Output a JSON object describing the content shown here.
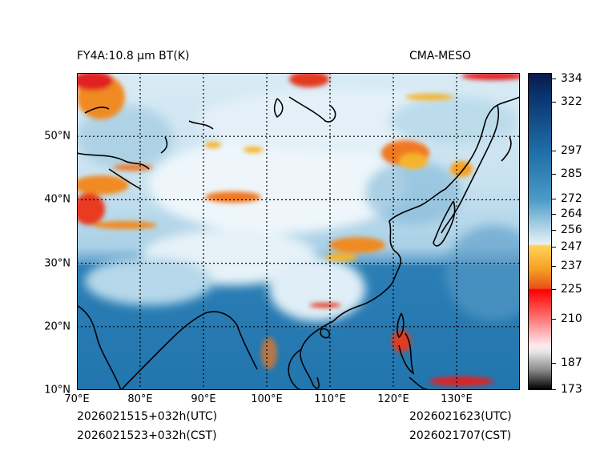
{
  "header": {
    "product": "FY4A:10.8 µm BT(K)",
    "model": "CMA-MESO"
  },
  "footer": {
    "init_utc": "2026021515+032h(UTC)",
    "init_cst": "2026021523+032h(CST)",
    "valid_utc": "2026021623(UTC)",
    "valid_cst": "2026021707(CST)"
  },
  "map": {
    "lon_range": [
      70,
      140
    ],
    "lat_range": [
      10,
      60
    ],
    "lat_labels": [
      {
        "value": 50,
        "label": "50°N"
      },
      {
        "value": 40,
        "label": "40°N"
      },
      {
        "value": 30,
        "label": "30°N"
      },
      {
        "value": 20,
        "label": "20°N"
      },
      {
        "value": 10,
        "label": "10°N"
      }
    ],
    "lon_labels": [
      {
        "value": 70,
        "label": "70°E"
      },
      {
        "value": 80,
        "label": "80°E"
      },
      {
        "value": 90,
        "label": "90°E"
      },
      {
        "value": 100,
        "label": "100°E"
      },
      {
        "value": 110,
        "label": "110°E"
      },
      {
        "value": 120,
        "label": "120°E"
      },
      {
        "value": 130,
        "label": "130°E"
      }
    ]
  },
  "colorbar": {
    "min": 173,
    "max": 337,
    "ticks": [
      {
        "value": 334,
        "label": "334"
      },
      {
        "value": 322,
        "label": "322"
      },
      {
        "value": 297,
        "label": "297"
      },
      {
        "value": 285,
        "label": "285"
      },
      {
        "value": 272,
        "label": "272"
      },
      {
        "value": 264,
        "label": "264"
      },
      {
        "value": 256,
        "label": "256"
      },
      {
        "value": 247,
        "label": "247"
      },
      {
        "value": 237,
        "label": "237"
      },
      {
        "value": 225,
        "label": "225"
      },
      {
        "value": 210,
        "label": "210"
      },
      {
        "value": 187,
        "label": "187"
      },
      {
        "value": 173,
        "label": "173"
      }
    ],
    "colors": {
      "ocean_warm": "#1f6fa8",
      "land_mid": "#8cc0dc",
      "cold_cloud": "#e8f3f9",
      "convective_orange": "#f07820",
      "convective_red": "#e02020",
      "coast": "#000000"
    }
  }
}
